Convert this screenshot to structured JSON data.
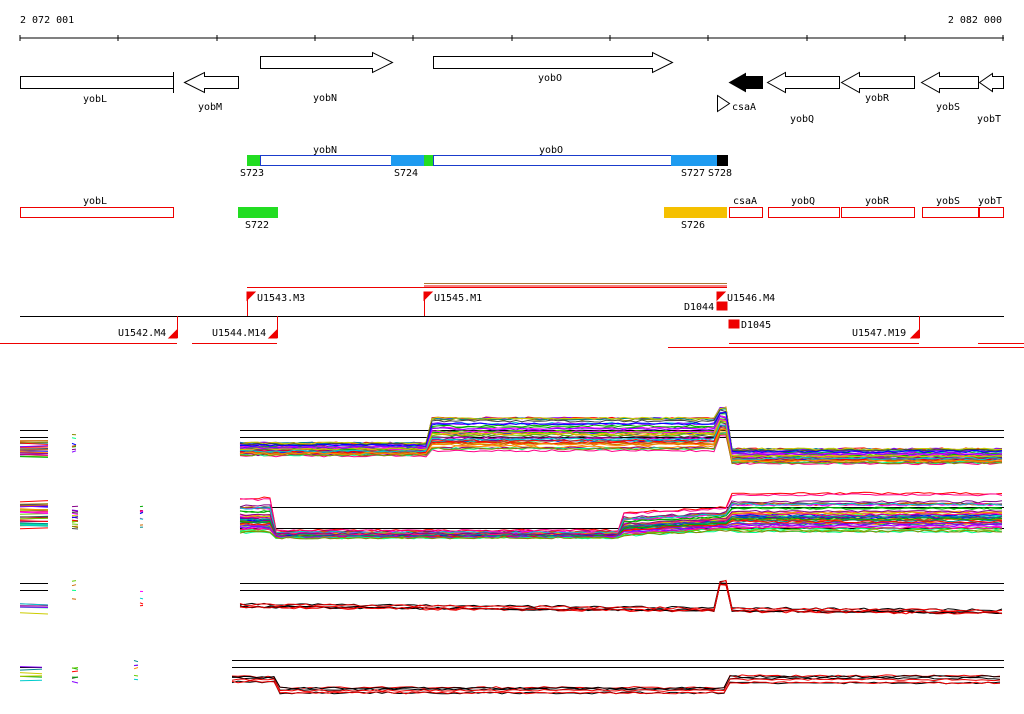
{
  "ruler": {
    "start_label": "2 072 001",
    "end_label": "2 082 000"
  },
  "genes": {
    "yobL": "yobL",
    "yobM": "yobM",
    "yobN": "yobN",
    "yobO": "yobO",
    "csaA": "csaA",
    "yobQ": "yobQ",
    "yobR": "yobR",
    "yobS": "yobS",
    "yobT": "yobT"
  },
  "segments": {
    "S723": "S723",
    "S724": "S724",
    "S727": "S727",
    "S728": "S728",
    "S722": "S722",
    "S726": "S726"
  },
  "units": {
    "U1543": "U1543.M3",
    "U1545": "U1545.M1",
    "U1546": "U1546.M4",
    "D1044": "D1044",
    "D1045": "D1045",
    "U1542": "U1542.M4",
    "U1544": "U1544.M14",
    "U1547": "U1547.M19"
  },
  "colors": {
    "green": "#22dd22",
    "blue": "#1e9bf0",
    "black": "#000000",
    "orange": "#f5c000",
    "red": "#ee0000",
    "navy": "#1a3ccc",
    "olive": "#aa7733"
  }
}
